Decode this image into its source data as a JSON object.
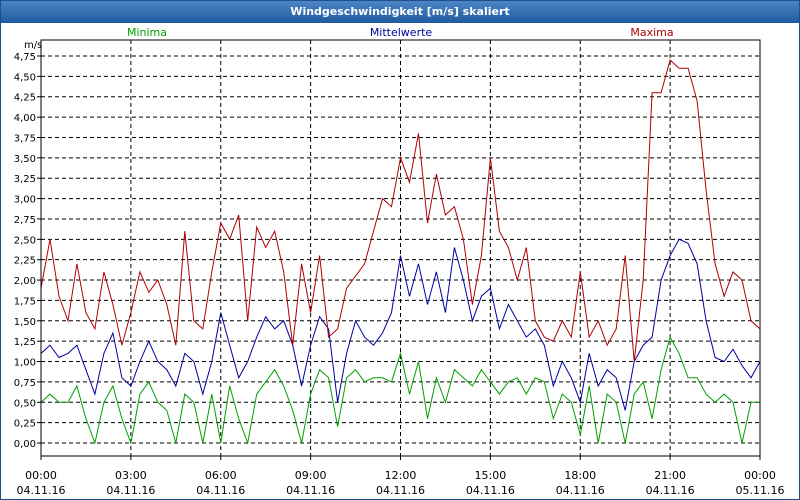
{
  "window": {
    "title": "Windgeschwindigkeit [m/s] skaliert"
  },
  "chart_data": {
    "type": "line",
    "title": "Windgeschwindigkeit [m/s] skaliert",
    "ylabel": "m/s",
    "ylim": [
      0,
      4.75
    ],
    "xlim": [
      0,
      24
    ],
    "grid": true,
    "yticks": [
      0,
      0.25,
      0.5,
      0.75,
      1.0,
      1.25,
      1.5,
      1.75,
      2.0,
      2.25,
      2.5,
      2.75,
      3.0,
      3.25,
      3.5,
      3.75,
      4.0,
      4.25,
      4.5,
      4.75
    ],
    "ytick_labels": [
      "0,00",
      "0,25",
      "0,50",
      "0,75",
      "1,00",
      "1,25",
      "1,50",
      "1,75",
      "2,00",
      "2,25",
      "2,50",
      "2,75",
      "3,00",
      "3,25",
      "3,50",
      "3,75",
      "4,00",
      "4,25",
      "4,50",
      "4,75"
    ],
    "xticks": [
      {
        "time": "00:00",
        "date": "04.11.16"
      },
      {
        "time": "03:00",
        "date": "04.11.16"
      },
      {
        "time": "06:00",
        "date": "04.11.16"
      },
      {
        "time": "09:00",
        "date": "04.11.16"
      },
      {
        "time": "12:00",
        "date": "04.11.16"
      },
      {
        "time": "15:00",
        "date": "04.11.16"
      },
      {
        "time": "18:00",
        "date": "04.11.16"
      },
      {
        "time": "21:00",
        "date": "04.11.16"
      },
      {
        "time": "00:00",
        "date": "05.11.16"
      }
    ],
    "series": [
      {
        "name": "Minima",
        "color": "#00a000",
        "x": [
          0,
          0.3,
          0.6,
          0.9,
          1.2,
          1.5,
          1.8,
          2.1,
          2.4,
          2.7,
          3.0,
          3.3,
          3.6,
          3.9,
          4.2,
          4.5,
          4.8,
          5.1,
          5.4,
          5.7,
          6.0,
          6.3,
          6.6,
          6.9,
          7.2,
          7.5,
          7.8,
          8.1,
          8.4,
          8.7,
          9.0,
          9.3,
          9.6,
          9.9,
          10.2,
          10.5,
          10.8,
          11.1,
          11.4,
          11.7,
          12.0,
          12.3,
          12.6,
          12.9,
          13.2,
          13.5,
          13.8,
          14.1,
          14.4,
          14.7,
          15.0,
          15.3,
          15.6,
          15.9,
          16.2,
          16.5,
          16.8,
          17.1,
          17.4,
          17.7,
          18.0,
          18.3,
          18.6,
          18.9,
          19.2,
          19.5,
          19.8,
          20.1,
          20.4,
          20.7,
          21.0,
          21.3,
          21.6,
          21.9,
          22.2,
          22.5,
          22.8,
          23.1,
          23.4,
          23.7,
          24.0
        ],
        "values": [
          0.5,
          0.6,
          0.5,
          0.5,
          0.7,
          0.3,
          0.0,
          0.5,
          0.7,
          0.3,
          0.0,
          0.6,
          0.75,
          0.5,
          0.4,
          0.0,
          0.6,
          0.5,
          0.0,
          0.6,
          0.0,
          0.7,
          0.3,
          0.0,
          0.6,
          0.75,
          0.9,
          0.7,
          0.4,
          0.0,
          0.6,
          0.9,
          0.8,
          0.2,
          0.8,
          0.9,
          0.75,
          0.8,
          0.8,
          0.75,
          1.1,
          0.6,
          1.0,
          0.3,
          0.8,
          0.5,
          0.9,
          0.8,
          0.7,
          0.9,
          0.75,
          0.6,
          0.75,
          0.8,
          0.6,
          0.8,
          0.75,
          0.3,
          0.6,
          0.5,
          0.1,
          0.7,
          0.0,
          0.6,
          0.5,
          0.0,
          0.6,
          0.75,
          0.3,
          0.9,
          1.3,
          1.1,
          0.8,
          0.8,
          0.6,
          0.5,
          0.6,
          0.5,
          0.0,
          0.5,
          0.5
        ]
      },
      {
        "name": "Mittelwerte",
        "color": "#0000a0",
        "x": [
          0,
          0.3,
          0.6,
          0.9,
          1.2,
          1.5,
          1.8,
          2.1,
          2.4,
          2.7,
          3.0,
          3.3,
          3.6,
          3.9,
          4.2,
          4.5,
          4.8,
          5.1,
          5.4,
          5.7,
          6.0,
          6.3,
          6.6,
          6.9,
          7.2,
          7.5,
          7.8,
          8.1,
          8.4,
          8.7,
          9.0,
          9.3,
          9.6,
          9.9,
          10.2,
          10.5,
          10.8,
          11.1,
          11.4,
          11.7,
          12.0,
          12.3,
          12.6,
          12.9,
          13.2,
          13.5,
          13.8,
          14.1,
          14.4,
          14.7,
          15.0,
          15.3,
          15.6,
          15.9,
          16.2,
          16.5,
          16.8,
          17.1,
          17.4,
          17.7,
          18.0,
          18.3,
          18.6,
          18.9,
          19.2,
          19.5,
          19.8,
          20.1,
          20.4,
          20.7,
          21.0,
          21.3,
          21.6,
          21.9,
          22.2,
          22.5,
          22.8,
          23.1,
          23.4,
          23.7,
          24.0
        ],
        "values": [
          1.1,
          1.2,
          1.05,
          1.1,
          1.2,
          0.9,
          0.6,
          1.1,
          1.35,
          0.8,
          0.7,
          1.0,
          1.25,
          1.0,
          0.9,
          0.7,
          1.1,
          1.0,
          0.6,
          1.0,
          1.6,
          1.2,
          0.8,
          1.0,
          1.3,
          1.55,
          1.4,
          1.5,
          1.2,
          0.7,
          1.2,
          1.55,
          1.4,
          0.5,
          1.1,
          1.5,
          1.3,
          1.2,
          1.35,
          1.6,
          2.3,
          1.8,
          2.2,
          1.7,
          2.1,
          1.6,
          2.4,
          2.0,
          1.5,
          1.8,
          1.9,
          1.4,
          1.7,
          1.5,
          1.3,
          1.4,
          1.2,
          0.7,
          1.0,
          0.8,
          0.5,
          1.1,
          0.7,
          0.9,
          0.8,
          0.4,
          1.0,
          1.2,
          1.3,
          2.0,
          2.3,
          2.5,
          2.45,
          2.2,
          1.5,
          1.05,
          1.0,
          1.15,
          0.95,
          0.8,
          1.0
        ]
      },
      {
        "name": "Maxima",
        "color": "#b00000",
        "x": [
          0,
          0.3,
          0.6,
          0.9,
          1.2,
          1.5,
          1.8,
          2.1,
          2.4,
          2.7,
          3.0,
          3.3,
          3.6,
          3.9,
          4.2,
          4.5,
          4.8,
          5.1,
          5.4,
          5.7,
          6.0,
          6.3,
          6.6,
          6.9,
          7.2,
          7.5,
          7.8,
          8.1,
          8.4,
          8.7,
          9.0,
          9.3,
          9.6,
          9.9,
          10.2,
          10.5,
          10.8,
          11.1,
          11.4,
          11.7,
          12.0,
          12.3,
          12.6,
          12.9,
          13.2,
          13.5,
          13.8,
          14.1,
          14.4,
          14.7,
          15.0,
          15.3,
          15.6,
          15.9,
          16.2,
          16.5,
          16.8,
          17.1,
          17.4,
          17.7,
          18.0,
          18.3,
          18.6,
          18.9,
          19.2,
          19.5,
          19.8,
          20.1,
          20.4,
          20.7,
          21.0,
          21.3,
          21.6,
          21.9,
          22.2,
          22.5,
          22.8,
          23.1,
          23.4,
          23.7,
          24.0
        ],
        "values": [
          1.9,
          2.5,
          1.8,
          1.5,
          2.2,
          1.6,
          1.4,
          2.1,
          1.7,
          1.2,
          1.6,
          2.1,
          1.85,
          2.0,
          1.7,
          1.2,
          2.6,
          1.5,
          1.4,
          2.1,
          2.7,
          2.5,
          2.8,
          1.5,
          2.65,
          2.4,
          2.6,
          2.1,
          1.2,
          2.2,
          1.6,
          2.3,
          1.3,
          1.4,
          1.9,
          2.05,
          2.2,
          2.6,
          3.0,
          2.9,
          3.5,
          3.2,
          3.8,
          2.7,
          3.3,
          2.8,
          2.9,
          2.5,
          1.7,
          2.3,
          3.5,
          2.6,
          2.4,
          2.0,
          2.4,
          1.5,
          1.3,
          1.25,
          1.5,
          1.3,
          2.1,
          1.3,
          1.5,
          1.2,
          1.4,
          2.3,
          1.0,
          2.0,
          4.3,
          4.3,
          4.7,
          4.6,
          4.6,
          4.2,
          3.1,
          2.2,
          1.8,
          2.1,
          2.0,
          1.5,
          1.4
        ]
      }
    ]
  }
}
